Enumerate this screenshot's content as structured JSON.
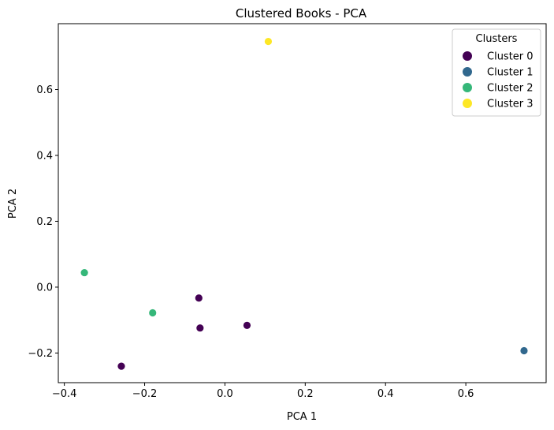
{
  "chart_data": {
    "type": "scatter",
    "title": "Clustered Books - PCA",
    "xlabel": "PCA 1",
    "ylabel": "PCA 2",
    "xlim": [
      -0.415,
      0.8
    ],
    "ylim": [
      -0.29,
      0.8
    ],
    "xticks": [
      -0.4,
      -0.2,
      0.0,
      0.2,
      0.4,
      0.6
    ],
    "xtick_labels": [
      "−0.4",
      "−0.2",
      "0.0",
      "0.2",
      "0.4",
      "0.6"
    ],
    "yticks": [
      -0.2,
      0.0,
      0.2,
      0.4,
      0.6
    ],
    "ytick_labels": [
      "−0.2",
      "0.0",
      "0.2",
      "0.4",
      "0.6"
    ],
    "grid": false,
    "legend": {
      "title": "Clusters",
      "placement": "top-right"
    },
    "series": [
      {
        "name": "Cluster 0",
        "color": "#440154",
        "points": [
          [
            -0.065,
            -0.033
          ],
          [
            -0.062,
            -0.124
          ],
          [
            0.055,
            -0.116
          ],
          [
            -0.258,
            -0.24
          ]
        ]
      },
      {
        "name": "Cluster 1",
        "color": "#31688e",
        "points": [
          [
            0.745,
            -0.193
          ]
        ]
      },
      {
        "name": "Cluster 2",
        "color": "#35b779",
        "points": [
          [
            -0.35,
            0.044
          ],
          [
            -0.18,
            -0.078
          ]
        ]
      },
      {
        "name": "Cluster 3",
        "color": "#fde725",
        "points": [
          [
            0.108,
            0.746
          ]
        ]
      }
    ]
  }
}
